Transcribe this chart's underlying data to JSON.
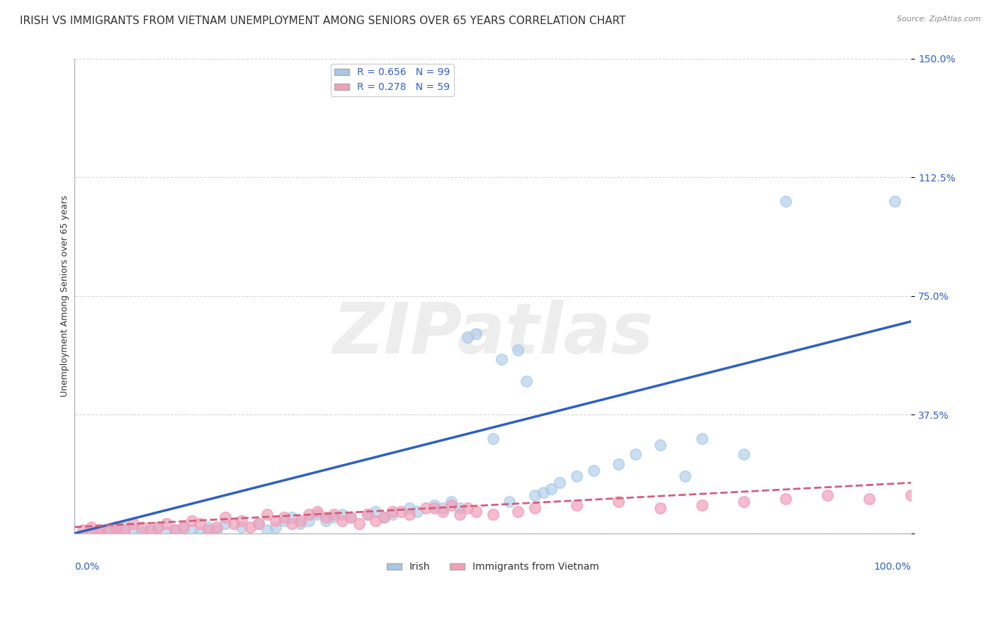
{
  "title": "IRISH VS IMMIGRANTS FROM VIETNAM UNEMPLOYMENT AMONG SENIORS OVER 65 YEARS CORRELATION CHART",
  "source": "Source: ZipAtlas.com",
  "ylabel": "Unemployment Among Seniors over 65 years",
  "yticks": [
    0.0,
    37.5,
    75.0,
    112.5,
    150.0
  ],
  "ytick_labels": [
    "",
    "37.5%",
    "75.0%",
    "112.5%",
    "150.0%"
  ],
  "xlim": [
    0.0,
    100.0
  ],
  "ylim": [
    0.0,
    150.0
  ],
  "watermark": "ZIPatlas",
  "irish_color": "#a8c8e8",
  "vietnam_color": "#f0a0b8",
  "irish_trend_color": "#3060c0",
  "vietnam_trend_color": "#d06080",
  "legend_text_color": "#3060c0",
  "irish_scatter_x": [
    2,
    3,
    4,
    5,
    6,
    7,
    8,
    9,
    10,
    11,
    12,
    13,
    14,
    15,
    16,
    17,
    18,
    20,
    22,
    23,
    24,
    25,
    26,
    27,
    28,
    29,
    30,
    31,
    32,
    33,
    35,
    36,
    37,
    38,
    40,
    41,
    43,
    44,
    45,
    46,
    47,
    48,
    50,
    51,
    52,
    53,
    54,
    55,
    56,
    57,
    58,
    60,
    62,
    65,
    67,
    70,
    73,
    75,
    80,
    85,
    98,
    22,
    25,
    27,
    29,
    32,
    35,
    37,
    40,
    42,
    44,
    46,
    48,
    50,
    52,
    55,
    57,
    60,
    62,
    65,
    68,
    70,
    72,
    75,
    78,
    80,
    85,
    90,
    95,
    98,
    3,
    5,
    7,
    9,
    11,
    13,
    15,
    18,
    20,
    23
  ],
  "irish_scatter_y": [
    0.5,
    1,
    0.5,
    1,
    2,
    1,
    0.5,
    1,
    2,
    0.5,
    1,
    2,
    1,
    0.5,
    2,
    1,
    3,
    2,
    3,
    1,
    2,
    4,
    5,
    3,
    4,
    6,
    4,
    5,
    6,
    5,
    6,
    7,
    5,
    6,
    8,
    7,
    9,
    8,
    10,
    8,
    62,
    63,
    30,
    55,
    10,
    58,
    48,
    12,
    13,
    14,
    16,
    18,
    20,
    22,
    25,
    28,
    18,
    30,
    25,
    105,
    105,
    1,
    2,
    3,
    4,
    5,
    6,
    7,
    8,
    9,
    10,
    11,
    12,
    13,
    14,
    15,
    16,
    17,
    18,
    19,
    20,
    21,
    22,
    23,
    24,
    25,
    26,
    27,
    28,
    29,
    1,
    2,
    3,
    4,
    5,
    6,
    7,
    8,
    9,
    10
  ],
  "vietnam_scatter_x": [
    1,
    2,
    3,
    4,
    5,
    6,
    7,
    8,
    9,
    10,
    11,
    12,
    13,
    14,
    15,
    16,
    17,
    18,
    19,
    20,
    21,
    22,
    23,
    24,
    25,
    26,
    27,
    28,
    29,
    30,
    31,
    32,
    33,
    34,
    35,
    36,
    37,
    38,
    40,
    42,
    44,
    45,
    46,
    47,
    48,
    50,
    55,
    60,
    65,
    70,
    75,
    80,
    85,
    90,
    95,
    100,
    53,
    43,
    39,
    3,
    5
  ],
  "vietnam_scatter_y": [
    1,
    2,
    1,
    0.5,
    2,
    1,
    3,
    2,
    1,
    2,
    3,
    1,
    2,
    4,
    3,
    1,
    2,
    5,
    3,
    4,
    2,
    3,
    6,
    4,
    5,
    3,
    4,
    6,
    7,
    5,
    6,
    4,
    5,
    3,
    6,
    4,
    5,
    7,
    6,
    8,
    7,
    9,
    6,
    8,
    7,
    6,
    8,
    9,
    10,
    8,
    9,
    10,
    11,
    12,
    11,
    12,
    7,
    8,
    7,
    1,
    2
  ],
  "irish_trend_x": [
    0,
    100
  ],
  "irish_trend_y": [
    0,
    67
  ],
  "vietnam_trend_x": [
    0,
    100
  ],
  "vietnam_trend_y": [
    2,
    16
  ],
  "grid_color": "#cccccc",
  "title_fontsize": 11,
  "axis_label_fontsize": 9,
  "tick_fontsize": 10,
  "watermark_color": "#d8d8d8",
  "watermark_fontsize": 72,
  "background_color": "#ffffff"
}
